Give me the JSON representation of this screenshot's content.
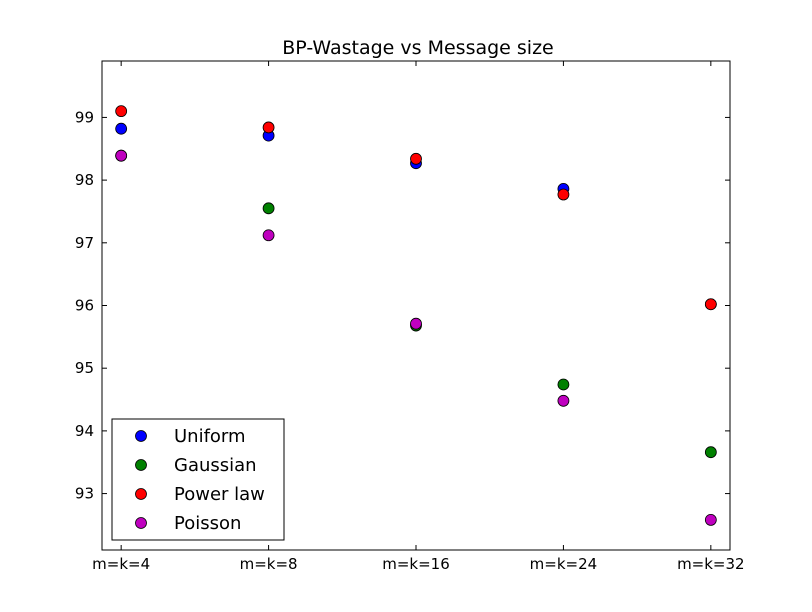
{
  "chart_data": {
    "type": "scatter",
    "title": "BP-Wastage vs Message size",
    "xlabel": "",
    "ylabel": "",
    "categories": [
      "m=k=4",
      "m=k=8",
      "m=k=16",
      "m=k=24",
      "m=k=32"
    ],
    "ylim": [
      92.1,
      99.9
    ],
    "yticks": [
      "93",
      "94",
      "95",
      "96",
      "97",
      "98",
      "99"
    ],
    "grid": false,
    "legend_position": "lower-left",
    "series": [
      {
        "name": "Uniform",
        "color": "#0000ff",
        "values": [
          98.82,
          98.71,
          98.27,
          97.86,
          96.02
        ]
      },
      {
        "name": "Gaussian",
        "color": "#008000",
        "values": [
          98.39,
          97.55,
          95.68,
          94.74,
          93.66
        ]
      },
      {
        "name": "Power law",
        "color": "#ff0000",
        "values": [
          99.1,
          98.84,
          98.34,
          97.77,
          96.02
        ]
      },
      {
        "name": "Poisson",
        "color": "#bf00bf",
        "values": [
          98.39,
          97.12,
          95.71,
          94.48,
          92.58
        ]
      }
    ]
  }
}
